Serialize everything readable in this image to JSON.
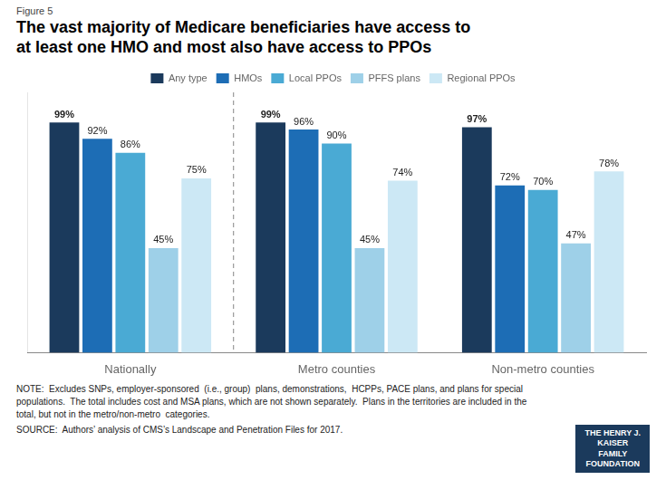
{
  "chart_data": {
    "type": "bar",
    "title": "The vast majority of Medicare beneficiaries have access to\nat least one HMO and most also have access to PPOs",
    "annotations": [
      "Figure 5",
      "NOTE:  Excludes SNPs, employer-sponsored  (i.e., group)  plans, demonstrations,  HCPPs, PACE plans, and plans for special\npopulations.  The total includes cost and MSA plans, which are not shown separately.  Plans in the territories are included in the\ntotal, but not in the metro/non-metro  categories.",
      "SOURCE:  Authors’ analysis of CMS’s Landscape and Penetration Files for 2017.",
      "THE HENRY J.\nKAISER\nFAMILY\nFOUNDATION"
    ],
    "categories": [
      "Nationally",
      "Metro counties",
      "Non-metro counties"
    ],
    "series": [
      {
        "name": "Any type",
        "color": "#1b3a5c",
        "values": [
          99,
          99,
          97
        ],
        "value_labels": [
          "99%",
          "99%",
          "97%"
        ]
      },
      {
        "name": "HMOs",
        "color": "#1d6db5",
        "values": [
          92,
          96,
          72
        ],
        "value_labels": [
          "92%",
          "96%",
          "72%"
        ]
      },
      {
        "name": "Local PPOs",
        "color": "#4aaad4",
        "values": [
          86,
          90,
          70
        ],
        "value_labels": [
          "86%",
          "90%",
          "70%"
        ]
      },
      {
        "name": "PFFS plans",
        "color": "#9ed0e8",
        "values": [
          45,
          45,
          47
        ],
        "value_labels": [
          "45%",
          "45%",
          "47%"
        ]
      },
      {
        "name": "Regional PPOs",
        "color": "#cce8f5",
        "values": [
          75,
          74,
          78
        ],
        "value_labels": [
          "75%",
          "74%",
          "78%"
        ]
      }
    ],
    "ylim": [
      0,
      112
    ],
    "grid": false,
    "legend": "top",
    "data_labels": true,
    "tick_labels": "x"
  }
}
